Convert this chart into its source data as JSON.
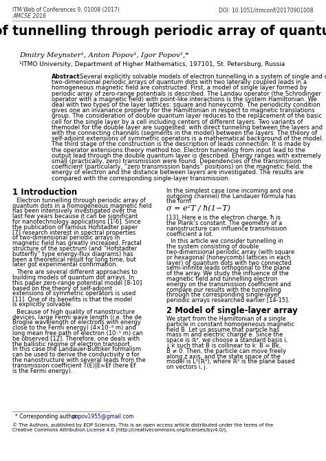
{
  "header_left_line1": "ITM Web of Conferences 9, 01008 (2017)",
  "header_left_line2": "AMCSE 2016",
  "header_right": "DOI: 10.1051/itmconf/20170901008",
  "title": "Model of tunnelling through periodic array of quantum dots",
  "authors": "Dmitry Meynster¹, Anton Popov¹, Igor Popov¹,*",
  "affiliation": "¹ITMO University, Department of Higher Mathematics, 197101, St. Petersburg, Russia",
  "abstract_label": "Abstract.",
  "abstract_body": "Several explicitly solvable models of electron tunnelling in a system of single and double two-dimensional periodic arrays of quantum dots with two laterally coupled leads in a homogeneous magnetic field are constructed. First, a model of single layer formed by periodic array of zero-range potentials is described. The Landau operator (the Schrodinger operator with a magnetic field) with point-like interactions is the system Hamiltonian. We deal with two types of the layer lattices: square and honeycomb. The periodicity condition gives one an invariance property for the Hamiltonian in respect to magnetic translations group. The consideration of double quantum layer reduces to the replacement of the basic cell for the single layer by a cell including centers of different layers. Two variants of themodel for the double layer are suggested: with direct tunneling between the layers and with the connecting channels (segments in the model) between the layers. The theory of self-adjoint extensions of symmetric operators is a mathematical background of the model. The third stage of the construction is the description of leads connection. It is made by the operator extensions theory method too. Electron tunneling from input lead to the output lead through the double quantum layer is described. Energy ranges with extremely small (practically, zero) transmission were found. Dependencies of the transmission coefficient (particularly, “zero transmission bands” positions) on the magnetic field, the energy of electron and the distance between layers are investigated. The results are compared with the corresponding single-layer transmission.",
  "sec1_title": "1 Introduction",
  "sec1_col1_para1": "Electron tunnelling through periodic array of quantum dots in a homogeneous magnetic field has been intensively investigated over the last few years because it can be significant for nanotechnology applications [1-6]. Since the publication of famous Hofstadter paper [7] research interest in spectral properties of two-dimensional periodic arrays in magnetic field has greatly increased. Fractal structure of the spectrum (and “Hofstadter butterfly” type energy-flux diagrams) has been a theoretical result for long time, but later got experimental confirmation.",
  "sec1_col1_para2": "There are several different approaches to building models of quantum dot arrays. In this paper zero-range potential model [8-10] based on the theory of self-adjoint extensions of symmetric operators is used [11]. One of its benefits is that the model is explicitly solvable.",
  "sec1_col1_para3": "Because of high quality of nanostructure devices, large Fermi wave length (i.e. the de Broglie wavelength of electrons with energy close to the Fermi energy) (4×10⁻⁸ m) and long mean free path of electron (10⁻⁵ m) can be observed [12]. Therefore, one deals with the ballistic regime of electron transport. In this case the Landauer-Buttiker formalism can be used to derive the conductivity σ for the nanostructure with several leads from the transmission coefficient T(E)|E=Ef (here Ef is the Fermi energy).",
  "sec1_col2_para1": "In the simplest case (one incoming and one outgoing channel) the Landauer formula has the form",
  "sec1_col2_formula": "σ = e²T / ħ(1−T)",
  "sec1_col2_after_formula": "[13]. Here e is the electron charge, ħ is the Plank’s constant. The geometry of a nanostructure can influence transmission coefficient a lot.",
  "sec1_col2_para2": "In this article we consider tunnelling in the system consisting of double two-dimensional periodic array (with square or hexagonal (honeycomb) lattices in each layer) of quantum dots with two connected semi-infinite leads orthogonal to the plane of the array. We study the influence of the magnetic field and tunnelling electron energy on the transmission coefficient and compare our results with the tunnelling through the corresponding single-layer periodic arrays researched earlier [14-15].",
  "sec2_title": "2 Model of single-layer array",
  "sec2_col2_para1": "We start from the Hamiltonian of a single particle in constant homogeneous magnetic field B. Let us assume that particle has mass m and electric charge e. Since the space is ℝ³, we choose a standard basis i, j, k such that B is collinear to k: B = B̅k, B ≠ 0. Then, the particle can move freely along z axis, and the state space of the model is L²(ℝ²), where ℝ² is the plane based on vectors i, j.",
  "footnote": "* Corresponding author: popov1955@gmail.com",
  "footnote_email": "popov1955@gmail.com",
  "footer": "© The Authors, published by EDP Sciences. This is an open access article distributed under the terms of the Creative Commons Attribution License 4.0 (http://creativecommons.org/licenses/by/4.0/).",
  "bg_color": "#ffffff"
}
